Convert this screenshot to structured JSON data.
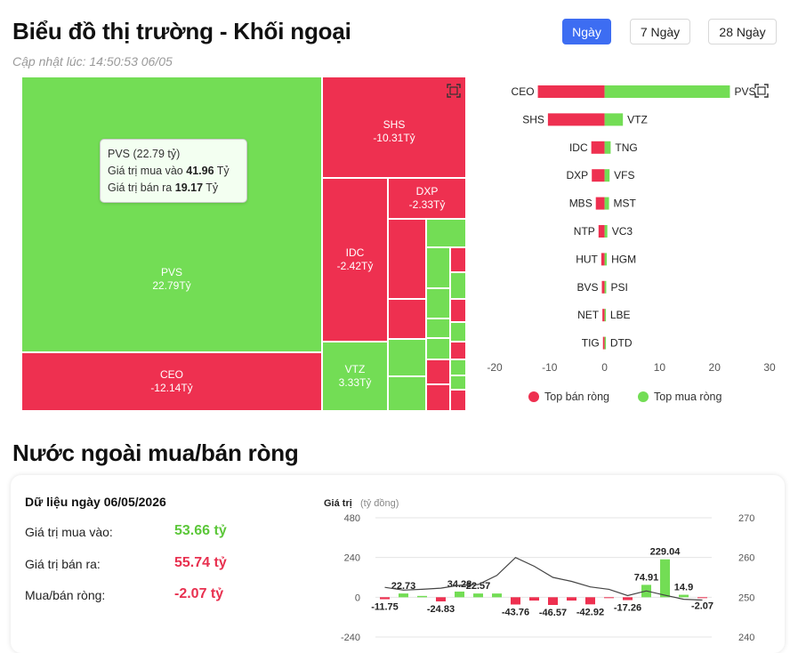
{
  "header": {
    "title": "Biểu đồ thị trường - Khối ngoại",
    "updated": "Cập nhật lúc: 14:50:53 06/05",
    "ranges": [
      {
        "label": "Ngày",
        "active": true
      },
      {
        "label": "7 Ngày",
        "active": false
      },
      {
        "label": "28 Ngày",
        "active": false
      }
    ]
  },
  "treemap": {
    "labeled_tiles": [
      {
        "name": "PVS",
        "value": "22.79Tỷ",
        "color": "green"
      },
      {
        "name": "CEO",
        "value": "-12.14Tỷ",
        "color": "red"
      },
      {
        "name": "SHS",
        "value": "-10.31Tỷ",
        "color": "red"
      },
      {
        "name": "IDC",
        "value": "-2.42Tỷ",
        "color": "red"
      },
      {
        "name": "DXP",
        "value": "-2.33Tỷ",
        "color": "red"
      },
      {
        "name": "VTZ",
        "value": "3.33Tỷ",
        "color": "green"
      }
    ],
    "tooltip": {
      "title": "PVS (22.79 tỷ)",
      "buy_label": "Giá trị mua vào",
      "buy_value": "41.96",
      "sell_label": "Giá trị bán ra",
      "sell_value": "19.17",
      "unit": "Tỷ"
    },
    "expand_icon": "expand-icon"
  },
  "bar_chart": {
    "xticks": [
      -20,
      -10,
      0,
      10,
      20,
      30
    ],
    "xlim": [
      -20,
      30
    ],
    "rows": [
      {
        "sell": "CEO",
        "sell_value": -12.14,
        "buy": "PVS",
        "buy_value": 22.79
      },
      {
        "sell": "SHS",
        "sell_value": -10.31,
        "buy": "VTZ",
        "buy_value": 3.33
      },
      {
        "sell": "IDC",
        "sell_value": -2.42,
        "buy": "TNG",
        "buy_value": 1.1
      },
      {
        "sell": "DXP",
        "sell_value": -2.33,
        "buy": "VFS",
        "buy_value": 0.9
      },
      {
        "sell": "MBS",
        "sell_value": -1.6,
        "buy": "MST",
        "buy_value": 0.8
      },
      {
        "sell": "NTP",
        "sell_value": -1.1,
        "buy": "VC3",
        "buy_value": 0.5
      },
      {
        "sell": "HUT",
        "sell_value": -0.6,
        "buy": "HGM",
        "buy_value": 0.4
      },
      {
        "sell": "BVS",
        "sell_value": -0.5,
        "buy": "PSI",
        "buy_value": 0.3
      },
      {
        "sell": "NET",
        "sell_value": -0.4,
        "buy": "LBE",
        "buy_value": 0.2
      },
      {
        "sell": "TIG",
        "sell_value": -0.3,
        "buy": "DTD",
        "buy_value": 0.2
      }
    ],
    "legend": [
      {
        "label": "Top bán ròng",
        "color": "#ee3050"
      },
      {
        "label": "Top mua ròng",
        "color": "#73dd55"
      }
    ]
  },
  "section2": {
    "title": "Nước ngoài mua/bán ròng",
    "date_label": "Dữ liệu ngày 06/05/2026",
    "stats": [
      {
        "label": "Giá trị mua vào:",
        "value": "53.66 tỷ",
        "tone": "green"
      },
      {
        "label": "Giá trị bán ra:",
        "value": "55.74 tỷ",
        "tone": "red"
      },
      {
        "label": "Mua/bán ròng:",
        "value": "-2.07 tỷ",
        "tone": "red"
      }
    ]
  },
  "chart_data": {
    "type": "bar",
    "ylabel": "Giá trị",
    "ylabel_unit": "(tỷ đồng)",
    "ylim": [
      -240,
      480
    ],
    "yticks_left": [
      480,
      240,
      0,
      -240
    ],
    "yticks_right": [
      270,
      260,
      250,
      240
    ],
    "y2lim": [
      240,
      270
    ],
    "series": [
      {
        "name": "net",
        "values": [
          -11.75,
          22.73,
          8.0,
          -24.83,
          34.28,
          22.57,
          22.57,
          -43.76,
          -20.0,
          -46.57,
          -20.0,
          -42.92,
          -5.0,
          -17.26,
          74.91,
          229.04,
          14.9,
          -2.07
        ],
        "labels": [
          "-11.75",
          "22.73",
          "",
          "-24.83",
          "34.28",
          "22.57",
          "",
          "-43.76",
          "",
          "-46.57",
          "",
          "-42.92",
          "",
          "-17.26",
          "74.91",
          "229.04",
          "14.9",
          "-2.07"
        ]
      },
      {
        "name": "index",
        "values": [
          252.5,
          251.8,
          252.0,
          252.3,
          253.0,
          253.2,
          255.5,
          260.0,
          257.8,
          255.0,
          254.0,
          252.6,
          252.0,
          250.4,
          251.6,
          250.5,
          249.5,
          249.3
        ]
      }
    ]
  }
}
